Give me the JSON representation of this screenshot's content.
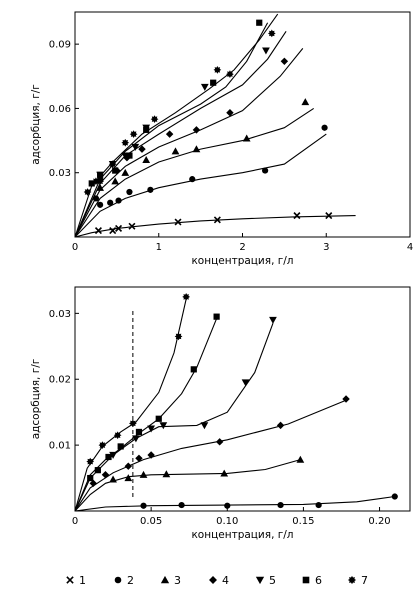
{
  "chart_data": [
    {
      "type": "scatter",
      "xlabel": "концентрация, г/л",
      "ylabel": "адсорбция, г/г",
      "xlim": [
        0,
        4
      ],
      "ylim": [
        0,
        0.105
      ],
      "xticks": [
        {
          "v": 0,
          "label": "0"
        },
        {
          "v": 1,
          "label": "1"
        },
        {
          "v": 2,
          "label": "2"
        },
        {
          "v": 3,
          "label": "3"
        },
        {
          "v": 4,
          "label": "4"
        }
      ],
      "yticks": [
        {
          "v": 0.03,
          "label": "0.03"
        },
        {
          "v": 0.06,
          "label": "0.06"
        },
        {
          "v": 0.09,
          "label": "0.09"
        }
      ],
      "series": [
        {
          "name": "1",
          "marker": "cross",
          "points": [
            [
              0.28,
              0.003
            ],
            [
              0.45,
              0.003
            ],
            [
              0.52,
              0.004
            ],
            [
              0.68,
              0.005
            ],
            [
              1.23,
              0.007
            ],
            [
              1.7,
              0.008
            ],
            [
              2.65,
              0.01
            ],
            [
              3.03,
              0.01
            ]
          ],
          "curve": [
            [
              0,
              0
            ],
            [
              0.2,
              0.002
            ],
            [
              0.5,
              0.004
            ],
            [
              1,
              0.006
            ],
            [
              1.5,
              0.0075
            ],
            [
              2,
              0.0085
            ],
            [
              2.6,
              0.0094
            ],
            [
              3.35,
              0.01
            ]
          ]
        },
        {
          "name": "2",
          "marker": "circle",
          "points": [
            [
              0.25,
              0.018
            ],
            [
              0.3,
              0.015
            ],
            [
              0.42,
              0.016
            ],
            [
              0.52,
              0.017
            ],
            [
              0.65,
              0.021
            ],
            [
              0.9,
              0.022
            ],
            [
              1.4,
              0.027
            ],
            [
              2.27,
              0.031
            ],
            [
              2.98,
              0.051
            ]
          ],
          "curve": [
            [
              0,
              0
            ],
            [
              0.3,
              0.012
            ],
            [
              0.6,
              0.018
            ],
            [
              1,
              0.023
            ],
            [
              1.5,
              0.027
            ],
            [
              2,
              0.03
            ],
            [
              2.5,
              0.034
            ],
            [
              3,
              0.048
            ]
          ]
        },
        {
          "name": "3",
          "marker": "triangle",
          "points": [
            [
              0.3,
              0.023
            ],
            [
              0.48,
              0.026
            ],
            [
              0.6,
              0.03
            ],
            [
              0.85,
              0.036
            ],
            [
              1.2,
              0.04
            ],
            [
              1.45,
              0.041
            ],
            [
              2.05,
              0.046
            ],
            [
              2.75,
              0.063
            ]
          ],
          "curve": [
            [
              0,
              0
            ],
            [
              0.3,
              0.018
            ],
            [
              0.6,
              0.027
            ],
            [
              1,
              0.035
            ],
            [
              1.5,
              0.041
            ],
            [
              2,
              0.045
            ],
            [
              2.5,
              0.051
            ],
            [
              2.85,
              0.06
            ]
          ]
        },
        {
          "name": "4",
          "marker": "diamond",
          "points": [
            [
              0.3,
              0.027
            ],
            [
              0.5,
              0.031
            ],
            [
              0.62,
              0.037
            ],
            [
              0.8,
              0.041
            ],
            [
              1.13,
              0.048
            ],
            [
              1.45,
              0.05
            ],
            [
              1.85,
              0.058
            ],
            [
              2.5,
              0.082
            ]
          ],
          "curve": [
            [
              0,
              0
            ],
            [
              0.3,
              0.022
            ],
            [
              0.6,
              0.033
            ],
            [
              1,
              0.042
            ],
            [
              1.5,
              0.05
            ],
            [
              2,
              0.059
            ],
            [
              2.45,
              0.075
            ],
            [
              2.72,
              0.088
            ]
          ]
        },
        {
          "name": "5",
          "marker": "triangle-down",
          "points": [
            [
              0.3,
              0.029
            ],
            [
              0.45,
              0.034
            ],
            [
              0.6,
              0.038
            ],
            [
              0.72,
              0.042
            ],
            [
              0.85,
              0.051
            ],
            [
              1.55,
              0.07
            ],
            [
              2.28,
              0.087
            ]
          ],
          "curve": [
            [
              0,
              0
            ],
            [
              0.3,
              0.025
            ],
            [
              0.6,
              0.038
            ],
            [
              1,
              0.048
            ],
            [
              1.5,
              0.06
            ],
            [
              2,
              0.071
            ],
            [
              2.3,
              0.083
            ],
            [
              2.52,
              0.096
            ]
          ]
        },
        {
          "name": "6",
          "marker": "square",
          "points": [
            [
              0.2,
              0.025
            ],
            [
              0.3,
              0.029
            ],
            [
              0.48,
              0.031
            ],
            [
              0.65,
              0.038
            ],
            [
              0.85,
              0.05
            ],
            [
              1.65,
              0.072
            ],
            [
              2.2,
              0.1
            ]
          ],
          "curve": [
            [
              0,
              0
            ],
            [
              0.3,
              0.027
            ],
            [
              0.6,
              0.04
            ],
            [
              1,
              0.052
            ],
            [
              1.5,
              0.062
            ],
            [
              1.8,
              0.07
            ],
            [
              2.05,
              0.082
            ],
            [
              2.3,
              0.1
            ]
          ]
        },
        {
          "name": "7",
          "marker": "star",
          "points": [
            [
              0.15,
              0.021
            ],
            [
              0.25,
              0.026
            ],
            [
              0.3,
              0.026
            ],
            [
              0.45,
              0.034
            ],
            [
              0.6,
              0.044
            ],
            [
              0.7,
              0.048
            ],
            [
              0.95,
              0.055
            ],
            [
              1.7,
              0.078
            ],
            [
              1.85,
              0.076
            ],
            [
              2.35,
              0.095
            ]
          ],
          "curve": [
            [
              0,
              0
            ],
            [
              0.2,
              0.024
            ],
            [
              0.45,
              0.035
            ],
            [
              0.8,
              0.048
            ],
            [
              1.2,
              0.058
            ],
            [
              1.6,
              0.069
            ],
            [
              1.9,
              0.078
            ],
            [
              2.2,
              0.092
            ],
            [
              2.42,
              0.104
            ]
          ]
        }
      ]
    },
    {
      "type": "scatter",
      "xlabel": "концентрация, г/л",
      "ylabel": "адсорбция, г/г",
      "xlim": [
        0,
        0.22
      ],
      "ylim": [
        0,
        0.034
      ],
      "vline": 0.038,
      "xticks": [
        {
          "v": 0,
          "label": "0"
        },
        {
          "v": 0.05,
          "label": "0.05"
        },
        {
          "v": 0.1,
          "label": "0.10"
        },
        {
          "v": 0.15,
          "label": "0.15"
        },
        {
          "v": 0.2,
          "label": "0.20"
        }
      ],
      "yticks": [
        {
          "v": 0.01,
          "label": "0.01"
        },
        {
          "v": 0.02,
          "label": "0.02"
        },
        {
          "v": 0.03,
          "label": "0.03"
        }
      ],
      "series": [
        {
          "name": "1",
          "marker": "cross",
          "points": [],
          "curve": []
        },
        {
          "name": "2",
          "marker": "circle",
          "points": [
            [
              0.045,
              0.0008
            ],
            [
              0.07,
              0.0009
            ],
            [
              0.1,
              0.0008
            ],
            [
              0.135,
              0.0009
            ],
            [
              0.16,
              0.0009
            ],
            [
              0.21,
              0.0022
            ]
          ],
          "curve": [
            [
              0,
              0
            ],
            [
              0.02,
              0.0006
            ],
            [
              0.05,
              0.0008
            ],
            [
              0.1,
              0.0009
            ],
            [
              0.15,
              0.001
            ],
            [
              0.185,
              0.0014
            ],
            [
              0.21,
              0.0022
            ]
          ]
        },
        {
          "name": "3",
          "marker": "triangle",
          "points": [
            [
              0.025,
              0.0048
            ],
            [
              0.035,
              0.005
            ],
            [
              0.045,
              0.0055
            ],
            [
              0.06,
              0.0056
            ],
            [
              0.098,
              0.0057
            ],
            [
              0.148,
              0.0078
            ]
          ],
          "curve": [
            [
              0,
              0
            ],
            [
              0.01,
              0.0025
            ],
            [
              0.02,
              0.0042
            ],
            [
              0.035,
              0.0052
            ],
            [
              0.05,
              0.0055
            ],
            [
              0.1,
              0.0057
            ],
            [
              0.125,
              0.0063
            ],
            [
              0.148,
              0.0078
            ]
          ]
        },
        {
          "name": "4",
          "marker": "diamond",
          "points": [
            [
              0.012,
              0.0042
            ],
            [
              0.02,
              0.0055
            ],
            [
              0.035,
              0.0068
            ],
            [
              0.042,
              0.008
            ],
            [
              0.05,
              0.0085
            ],
            [
              0.095,
              0.0105
            ],
            [
              0.135,
              0.013
            ],
            [
              0.178,
              0.017
            ]
          ],
          "curve": [
            [
              0,
              0
            ],
            [
              0.01,
              0.0035
            ],
            [
              0.025,
              0.0058
            ],
            [
              0.045,
              0.0078
            ],
            [
              0.07,
              0.0095
            ],
            [
              0.1,
              0.0108
            ],
            [
              0.14,
              0.0132
            ],
            [
              0.178,
              0.0168
            ]
          ]
        },
        {
          "name": "5",
          "marker": "triangle-down",
          "points": [
            [
              0.025,
              0.0085
            ],
            [
              0.04,
              0.011
            ],
            [
              0.05,
              0.0125
            ],
            [
              0.058,
              0.013
            ],
            [
              0.085,
              0.013
            ],
            [
              0.112,
              0.0195
            ],
            [
              0.13,
              0.029
            ]
          ],
          "curve": [
            [
              0,
              0
            ],
            [
              0.01,
              0.005
            ],
            [
              0.025,
              0.0085
            ],
            [
              0.04,
              0.011
            ],
            [
              0.055,
              0.0128
            ],
            [
              0.08,
              0.013
            ],
            [
              0.1,
              0.015
            ],
            [
              0.118,
              0.021
            ],
            [
              0.13,
              0.0285
            ]
          ]
        },
        {
          "name": "6",
          "marker": "square",
          "points": [
            [
              0.01,
              0.005
            ],
            [
              0.015,
              0.0062
            ],
            [
              0.022,
              0.0082
            ],
            [
              0.03,
              0.0098
            ],
            [
              0.042,
              0.012
            ],
            [
              0.055,
              0.014
            ],
            [
              0.078,
              0.0215
            ],
            [
              0.093,
              0.0295
            ]
          ],
          "curve": [
            [
              0,
              0
            ],
            [
              0.01,
              0.0055
            ],
            [
              0.02,
              0.0078
            ],
            [
              0.03,
              0.0095
            ],
            [
              0.042,
              0.0118
            ],
            [
              0.055,
              0.014
            ],
            [
              0.07,
              0.0178
            ],
            [
              0.08,
              0.0218
            ],
            [
              0.093,
              0.0292
            ]
          ]
        },
        {
          "name": "7",
          "marker": "star",
          "points": [
            [
              0.01,
              0.0075
            ],
            [
              0.018,
              0.01
            ],
            [
              0.028,
              0.0115
            ],
            [
              0.038,
              0.0133
            ],
            [
              0.068,
              0.0265
            ],
            [
              0.073,
              0.0325
            ]
          ],
          "curve": [
            [
              0,
              0
            ],
            [
              0.008,
              0.0065
            ],
            [
              0.018,
              0.0098
            ],
            [
              0.03,
              0.012
            ],
            [
              0.04,
              0.0135
            ],
            [
              0.055,
              0.018
            ],
            [
              0.065,
              0.024
            ],
            [
              0.073,
              0.0322
            ]
          ]
        }
      ]
    }
  ],
  "legend": {
    "placement": "bottom",
    "entries": [
      {
        "label": "1",
        "marker": "cross"
      },
      {
        "label": "2",
        "marker": "circle"
      },
      {
        "label": "3",
        "marker": "triangle"
      },
      {
        "label": "4",
        "marker": "diamond"
      },
      {
        "label": "5",
        "marker": "triangle-down"
      },
      {
        "label": "6",
        "marker": "square"
      },
      {
        "label": "7",
        "marker": "star"
      }
    ]
  }
}
